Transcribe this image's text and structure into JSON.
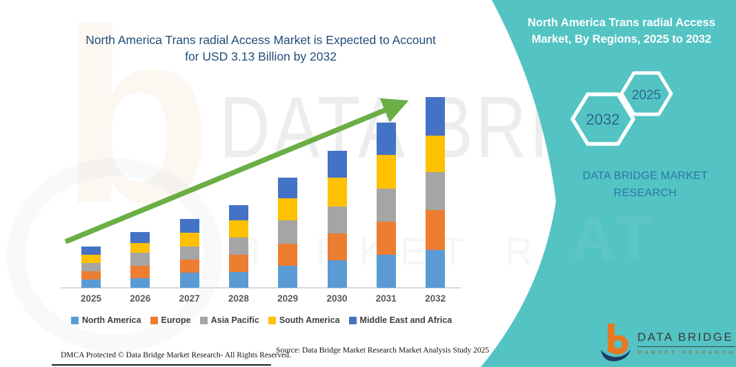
{
  "page": {
    "background": "#FFFFFF",
    "accent_teal": "#54C3C3",
    "arrow_green": "#6BAE45"
  },
  "header": {
    "title_lines": [
      "North America Trans radial Access Market is Expected to Account",
      "for USD 3.13 Billion by 2032"
    ],
    "title_color": "#1F4E79"
  },
  "chart_data": {
    "type": "bar",
    "stacked": true,
    "title": "North America Trans radial Access Market is Expected to Account for USD 3.13 Billion by 2032",
    "unit": "USD Billion",
    "categories": [
      "2025",
      "2026",
      "2027",
      "2028",
      "2029",
      "2030",
      "2031",
      "2032"
    ],
    "series": [
      {
        "name": "North America",
        "color": "#5B9BD5",
        "values": [
          0.13,
          0.16,
          0.25,
          0.26,
          0.36,
          0.45,
          0.54,
          0.62
        ]
      },
      {
        "name": "Europe",
        "color": "#ED7D31",
        "values": [
          0.14,
          0.2,
          0.22,
          0.28,
          0.36,
          0.44,
          0.54,
          0.66
        ]
      },
      {
        "name": "Asia Pacific",
        "color": "#A5A5A5",
        "values": [
          0.14,
          0.22,
          0.21,
          0.28,
          0.38,
          0.44,
          0.54,
          0.62
        ]
      },
      {
        "name": "South America",
        "color": "#FFC000",
        "values": [
          0.13,
          0.16,
          0.23,
          0.28,
          0.36,
          0.48,
          0.55,
          0.6
        ]
      },
      {
        "name": "Middle East and Africa",
        "color": "#4472C4",
        "values": [
          0.14,
          0.18,
          0.23,
          0.25,
          0.34,
          0.44,
          0.53,
          0.63
        ]
      }
    ],
    "totals": [
      0.68,
      0.92,
      1.14,
      1.35,
      1.8,
      2.25,
      2.7,
      3.13
    ],
    "ylim": [
      0,
      3.3
    ],
    "grid": false,
    "axis_labels_shown": "x-only",
    "legend_position": "bottom",
    "annotations": [
      {
        "kind": "trend-arrow",
        "direction": "up",
        "color": "#6BAE45"
      }
    ]
  },
  "side_panel": {
    "title_lines": [
      "North America Trans radial Access",
      "Market, By Regions, 2025 to 2032"
    ],
    "hexagons": [
      {
        "label": "2032"
      },
      {
        "label": "2025"
      }
    ],
    "caption_lines": [
      "DATA BRIDGE MARKET",
      "RESEARCH"
    ],
    "bg_color": "#54C3C3",
    "caption_color": "#2878A8"
  },
  "logo": {
    "glyph": "b",
    "name": "DATA BRIDGE",
    "subtitle": "MARKET RESEARCH"
  },
  "watermark": {
    "line1": "DATA BRIDGE",
    "line2": "MARKET RESEARCH"
  },
  "footer": {
    "dmca": "DMCA Protected © Data Bridge Market Research-  All Rights Reserved.",
    "source": "Source: Data Bridge Market Research  Market Analysis Study 2025"
  }
}
